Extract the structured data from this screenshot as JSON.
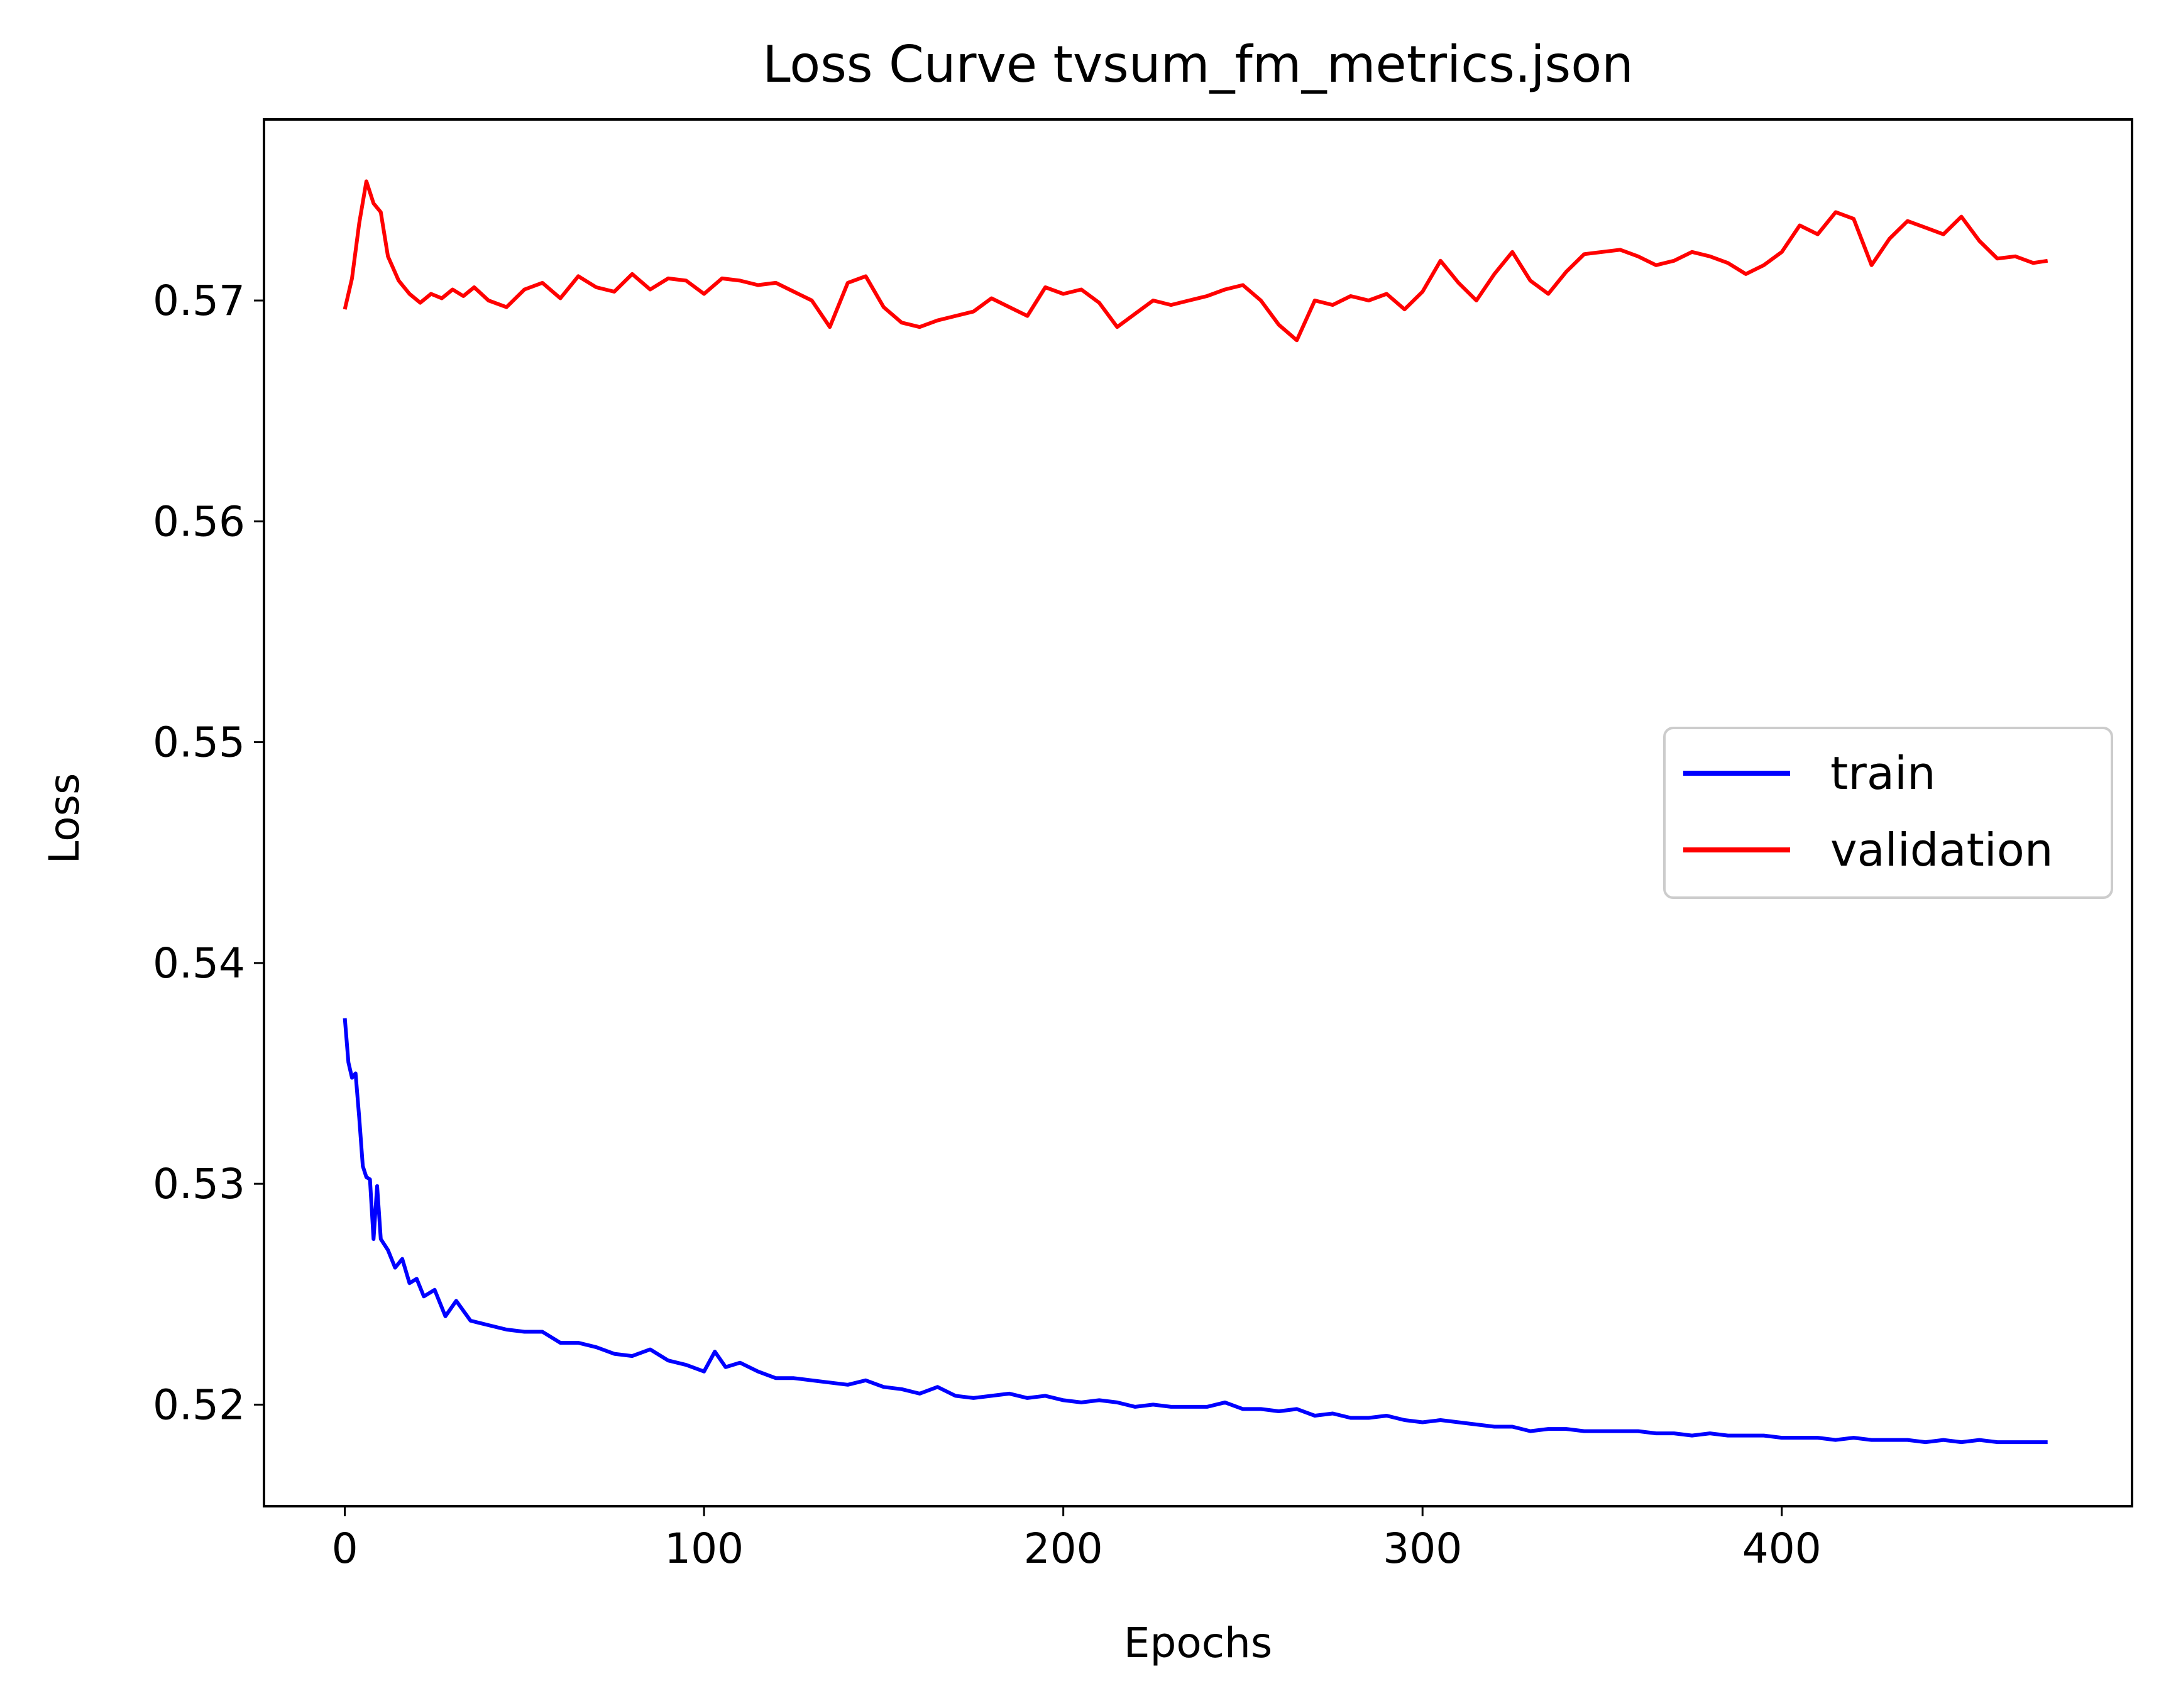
{
  "chart_data": {
    "type": "line",
    "title": "Loss Curve tvsum_fm_metrics.json",
    "xlabel": "Epochs",
    "ylabel": "Loss",
    "xlim": [
      -22.5,
      497.5
    ],
    "ylim": [
      0.5154,
      0.5782
    ],
    "x_ticks": [
      0,
      100,
      200,
      300,
      400
    ],
    "y_ticks": [
      0.52,
      0.53,
      0.54,
      0.55,
      0.56,
      0.57
    ],
    "y_tick_labels": [
      "0.52",
      "0.53",
      "0.54",
      "0.55",
      "0.56",
      "0.57"
    ],
    "grid": false,
    "legend_position": "center-right",
    "series": [
      {
        "name": "train",
        "color": "#0000ff",
        "points": [
          [
            0,
            0.5375
          ],
          [
            1,
            0.5355
          ],
          [
            2,
            0.5348
          ],
          [
            3,
            0.535
          ],
          [
            4,
            0.533
          ],
          [
            5,
            0.5308
          ],
          [
            6,
            0.5303
          ],
          [
            7,
            0.5302
          ],
          [
            8,
            0.5275
          ],
          [
            9,
            0.5299
          ],
          [
            10,
            0.5275
          ],
          [
            12,
            0.527
          ],
          [
            14,
            0.5262
          ],
          [
            16,
            0.5266
          ],
          [
            18,
            0.5255
          ],
          [
            20,
            0.5257
          ],
          [
            22,
            0.5249
          ],
          [
            25,
            0.5252
          ],
          [
            28,
            0.524
          ],
          [
            31,
            0.5247
          ],
          [
            35,
            0.5238
          ],
          [
            40,
            0.5236
          ],
          [
            45,
            0.5234
          ],
          [
            50,
            0.5233
          ],
          [
            55,
            0.5233
          ],
          [
            60,
            0.5228
          ],
          [
            65,
            0.5228
          ],
          [
            70,
            0.5226
          ],
          [
            75,
            0.5223
          ],
          [
            80,
            0.5222
          ],
          [
            85,
            0.5225
          ],
          [
            90,
            0.522
          ],
          [
            95,
            0.5218
          ],
          [
            100,
            0.5215
          ],
          [
            103,
            0.5224
          ],
          [
            106,
            0.5217
          ],
          [
            110,
            0.5219
          ],
          [
            115,
            0.5215
          ],
          [
            120,
            0.5212
          ],
          [
            125,
            0.5212
          ],
          [
            130,
            0.5211
          ],
          [
            135,
            0.521
          ],
          [
            140,
            0.5209
          ],
          [
            145,
            0.5211
          ],
          [
            150,
            0.5208
          ],
          [
            155,
            0.5207
          ],
          [
            160,
            0.5205
          ],
          [
            165,
            0.5208
          ],
          [
            170,
            0.5204
          ],
          [
            175,
            0.5203
          ],
          [
            180,
            0.5204
          ],
          [
            185,
            0.5205
          ],
          [
            190,
            0.5203
          ],
          [
            195,
            0.5204
          ],
          [
            200,
            0.5202
          ],
          [
            205,
            0.5201
          ],
          [
            210,
            0.5202
          ],
          [
            215,
            0.5201
          ],
          [
            220,
            0.5199
          ],
          [
            225,
            0.52
          ],
          [
            230,
            0.5199
          ],
          [
            235,
            0.5199
          ],
          [
            240,
            0.5199
          ],
          [
            245,
            0.5201
          ],
          [
            250,
            0.5198
          ],
          [
            255,
            0.5198
          ],
          [
            260,
            0.5197
          ],
          [
            265,
            0.5198
          ],
          [
            270,
            0.5195
          ],
          [
            275,
            0.5196
          ],
          [
            280,
            0.5194
          ],
          [
            285,
            0.5194
          ],
          [
            290,
            0.5195
          ],
          [
            295,
            0.5193
          ],
          [
            300,
            0.5192
          ],
          [
            305,
            0.5193
          ],
          [
            310,
            0.5192
          ],
          [
            315,
            0.5191
          ],
          [
            320,
            0.519
          ],
          [
            325,
            0.519
          ],
          [
            330,
            0.5188
          ],
          [
            335,
            0.5189
          ],
          [
            340,
            0.5189
          ],
          [
            345,
            0.5188
          ],
          [
            350,
            0.5188
          ],
          [
            355,
            0.5188
          ],
          [
            360,
            0.5188
          ],
          [
            365,
            0.5187
          ],
          [
            370,
            0.5187
          ],
          [
            375,
            0.5186
          ],
          [
            380,
            0.5187
          ],
          [
            385,
            0.5186
          ],
          [
            390,
            0.5186
          ],
          [
            395,
            0.5186
          ],
          [
            400,
            0.5185
          ],
          [
            405,
            0.5185
          ],
          [
            410,
            0.5185
          ],
          [
            415,
            0.5184
          ],
          [
            420,
            0.5185
          ],
          [
            425,
            0.5184
          ],
          [
            430,
            0.5184
          ],
          [
            435,
            0.5184
          ],
          [
            440,
            0.5183
          ],
          [
            445,
            0.5184
          ],
          [
            450,
            0.5183
          ],
          [
            455,
            0.5184
          ],
          [
            460,
            0.5183
          ],
          [
            465,
            0.5183
          ],
          [
            470,
            0.5183
          ],
          [
            474,
            0.5183
          ]
        ]
      },
      {
        "name": "validation",
        "color": "#ff0000",
        "points": [
          [
            0,
            0.5696
          ],
          [
            2,
            0.571
          ],
          [
            4,
            0.5735
          ],
          [
            6,
            0.5754
          ],
          [
            8,
            0.5744
          ],
          [
            10,
            0.574
          ],
          [
            12,
            0.572
          ],
          [
            15,
            0.5709
          ],
          [
            18,
            0.5703
          ],
          [
            21,
            0.5699
          ],
          [
            24,
            0.5703
          ],
          [
            27,
            0.5701
          ],
          [
            30,
            0.5705
          ],
          [
            33,
            0.5702
          ],
          [
            36,
            0.5706
          ],
          [
            40,
            0.57
          ],
          [
            45,
            0.5697
          ],
          [
            50,
            0.5705
          ],
          [
            55,
            0.5708
          ],
          [
            60,
            0.5701
          ],
          [
            65,
            0.5711
          ],
          [
            70,
            0.5706
          ],
          [
            75,
            0.5704
          ],
          [
            80,
            0.5712
          ],
          [
            85,
            0.5705
          ],
          [
            90,
            0.571
          ],
          [
            95,
            0.5709
          ],
          [
            100,
            0.5703
          ],
          [
            105,
            0.571
          ],
          [
            110,
            0.5709
          ],
          [
            115,
            0.5707
          ],
          [
            120,
            0.5708
          ],
          [
            125,
            0.5704
          ],
          [
            130,
            0.57
          ],
          [
            135,
            0.5688
          ],
          [
            140,
            0.5708
          ],
          [
            145,
            0.5711
          ],
          [
            150,
            0.5697
          ],
          [
            155,
            0.569
          ],
          [
            160,
            0.5688
          ],
          [
            165,
            0.5691
          ],
          [
            170,
            0.5693
          ],
          [
            175,
            0.5695
          ],
          [
            180,
            0.5701
          ],
          [
            185,
            0.5697
          ],
          [
            190,
            0.5693
          ],
          [
            195,
            0.5706
          ],
          [
            200,
            0.5703
          ],
          [
            205,
            0.5705
          ],
          [
            210,
            0.5699
          ],
          [
            215,
            0.5688
          ],
          [
            220,
            0.5694
          ],
          [
            225,
            0.57
          ],
          [
            230,
            0.5698
          ],
          [
            235,
            0.57
          ],
          [
            240,
            0.5702
          ],
          [
            245,
            0.5705
          ],
          [
            250,
            0.5707
          ],
          [
            255,
            0.57
          ],
          [
            260,
            0.5689
          ],
          [
            265,
            0.5682
          ],
          [
            270,
            0.57
          ],
          [
            275,
            0.5698
          ],
          [
            280,
            0.5702
          ],
          [
            285,
            0.57
          ],
          [
            290,
            0.5703
          ],
          [
            295,
            0.5696
          ],
          [
            300,
            0.5704
          ],
          [
            305,
            0.5718
          ],
          [
            310,
            0.5708
          ],
          [
            315,
            0.57
          ],
          [
            320,
            0.5712
          ],
          [
            325,
            0.5722
          ],
          [
            330,
            0.5709
          ],
          [
            335,
            0.5703
          ],
          [
            340,
            0.5713
          ],
          [
            345,
            0.5721
          ],
          [
            350,
            0.5722
          ],
          [
            355,
            0.5723
          ],
          [
            360,
            0.572
          ],
          [
            365,
            0.5716
          ],
          [
            370,
            0.5718
          ],
          [
            375,
            0.5722
          ],
          [
            380,
            0.572
          ],
          [
            385,
            0.5717
          ],
          [
            390,
            0.5712
          ],
          [
            395,
            0.5716
          ],
          [
            400,
            0.5722
          ],
          [
            405,
            0.5734
          ],
          [
            410,
            0.573
          ],
          [
            415,
            0.574
          ],
          [
            420,
            0.5737
          ],
          [
            425,
            0.5716
          ],
          [
            430,
            0.5728
          ],
          [
            435,
            0.5736
          ],
          [
            440,
            0.5733
          ],
          [
            445,
            0.573
          ],
          [
            450,
            0.5738
          ],
          [
            455,
            0.5727
          ],
          [
            460,
            0.5719
          ],
          [
            465,
            0.572
          ],
          [
            470,
            0.5717
          ],
          [
            474,
            0.5718
          ]
        ]
      }
    ]
  }
}
